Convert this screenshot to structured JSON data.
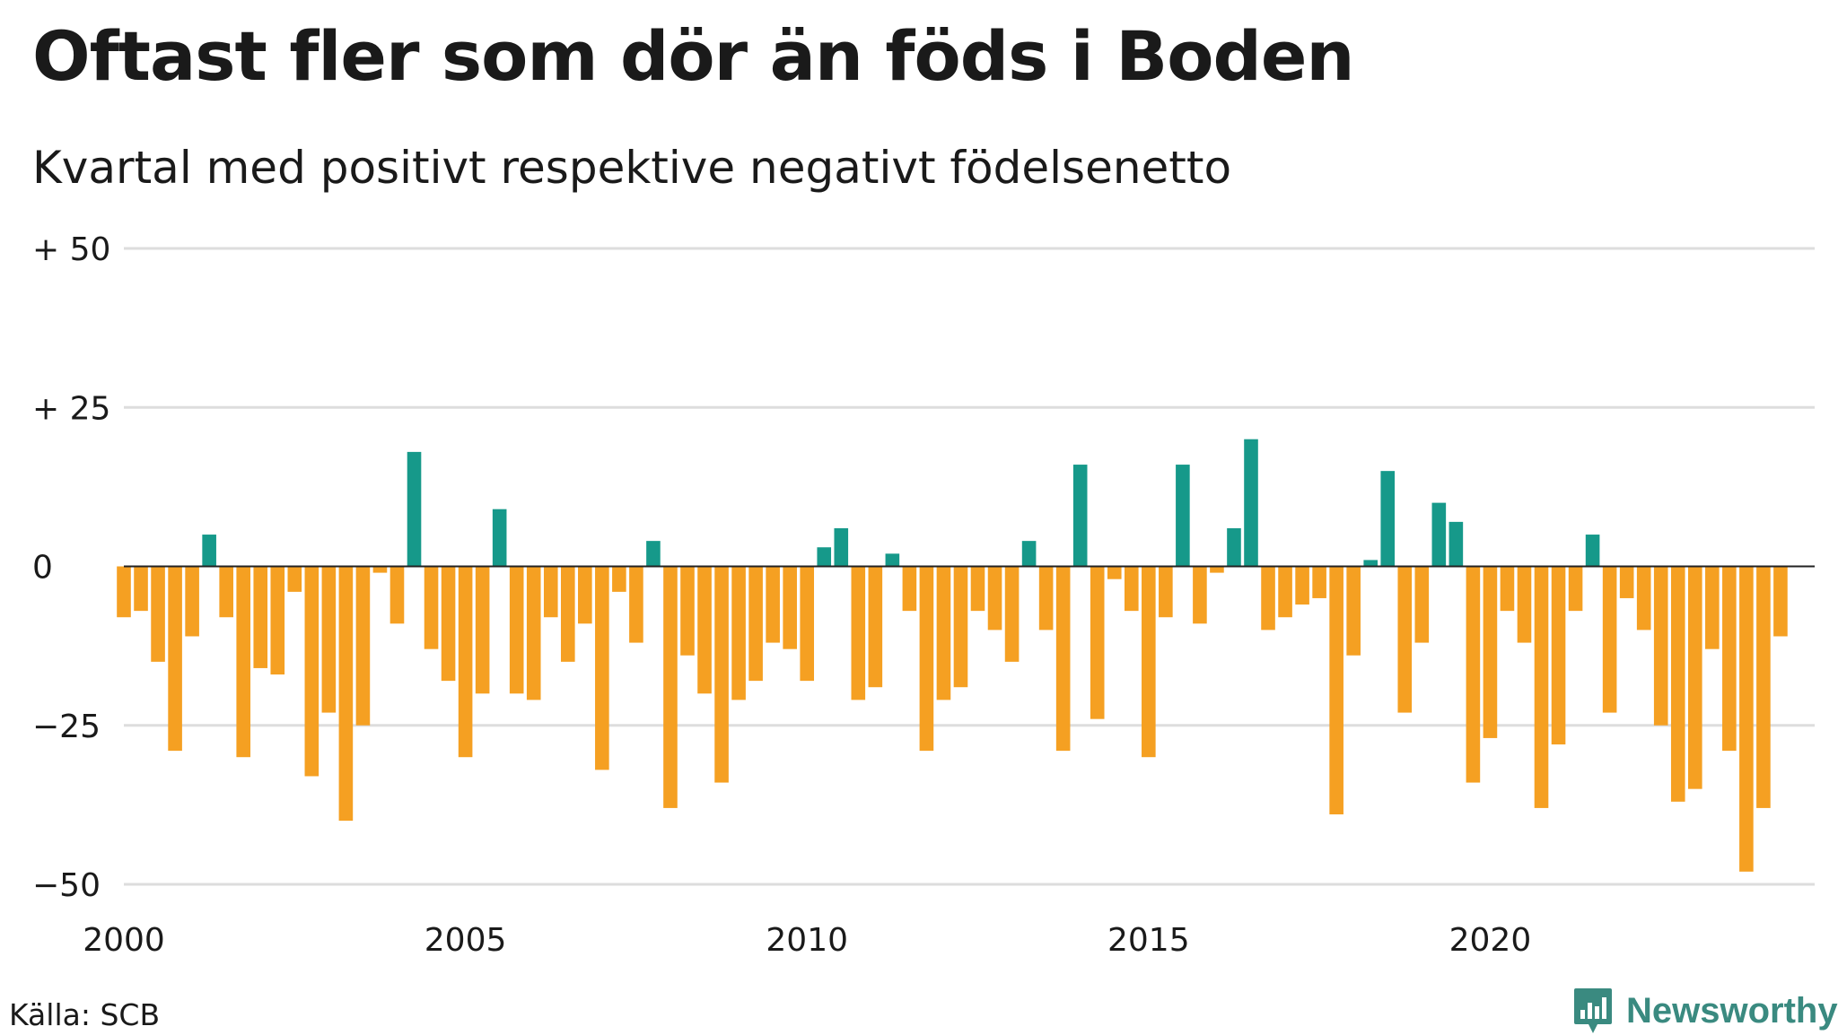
{
  "title": "Oftast fler som dör än föds i Boden",
  "subtitle": "Kvartal med positivt respektive negativt födelsenetto",
  "source": "Källa: SCB",
  "logo": {
    "name": "Newsworthy",
    "icon": "newsworthy-logo-icon"
  },
  "colors": {
    "positive": "#16998a",
    "negative": "#f5a022",
    "grid": "#dddddd",
    "zero_line": "#222222"
  },
  "chart_data": {
    "type": "bar",
    "title": "Oftast fler som dör än föds i Boden",
    "subtitle": "Kvartal med positivt respektive negativt födelsenetto",
    "xlabel": "",
    "ylabel": "",
    "xlim": [
      2000,
      2024.75
    ],
    "ylim": [
      -50,
      50
    ],
    "x_ticks": [
      {
        "value": 2000,
        "label": "2000"
      },
      {
        "value": 2005,
        "label": "2005"
      },
      {
        "value": 2010,
        "label": "2010"
      },
      {
        "value": 2015,
        "label": "2015"
      },
      {
        "value": 2020,
        "label": "2020"
      }
    ],
    "y_ticks": [
      {
        "value": 50,
        "label": "+ 50"
      },
      {
        "value": 25,
        "label": "+ 25"
      },
      {
        "value": 0,
        "label": "0"
      },
      {
        "value": -25,
        "label": "−25"
      },
      {
        "value": -50,
        "label": "−50"
      }
    ],
    "grid": true,
    "legend": "none",
    "series": [
      {
        "start_year": 2000,
        "start_quarter": 1,
        "values": [
          -8,
          -7,
          -15,
          -29,
          -11,
          5,
          -8,
          -30,
          -16,
          -17,
          -4,
          -33,
          -23,
          -40,
          -25,
          -1,
          -9,
          18,
          -13,
          -18,
          -30,
          -20,
          9,
          -20,
          -21,
          -8,
          -15,
          -9,
          -32,
          -4,
          -12,
          4,
          -38,
          -14,
          -20,
          -34,
          -21,
          -18,
          -12,
          -13,
          -18,
          3,
          6,
          -21,
          -19,
          2,
          -7,
          -29,
          -21,
          -19,
          -7,
          -10,
          -15,
          4,
          -10,
          -29,
          16,
          -24,
          -2,
          -7,
          -30,
          -8,
          16,
          -9,
          -1,
          6,
          20,
          -10,
          -8,
          -6,
          -5,
          -39,
          -14,
          1,
          15,
          -23,
          -12,
          10,
          7,
          -34,
          -27,
          -7,
          -12,
          -38,
          -28,
          -7,
          5,
          -23,
          -5,
          -10,
          -25,
          -37,
          -35,
          -13,
          -29,
          -48,
          -38,
          -11
        ]
      }
    ]
  }
}
